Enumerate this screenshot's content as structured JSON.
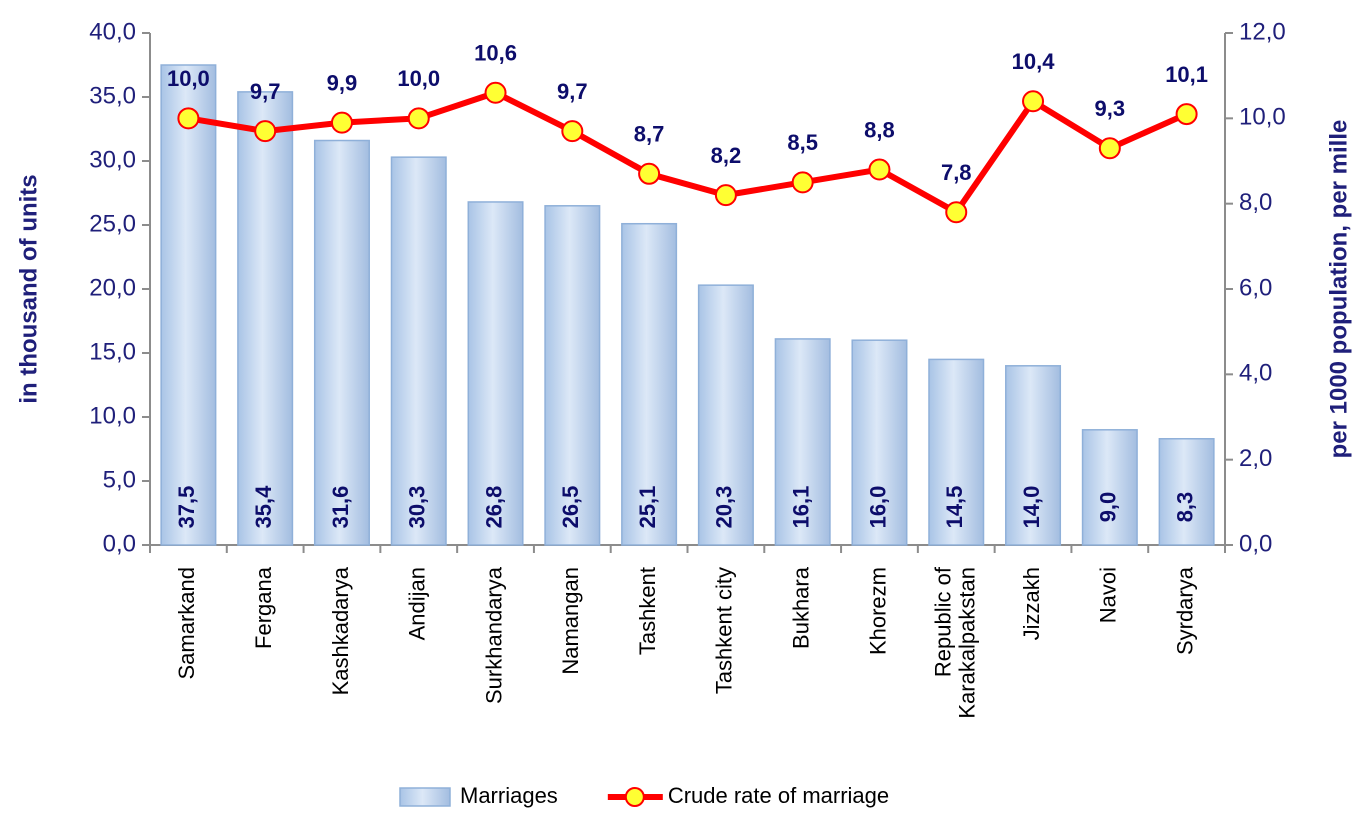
{
  "chart_data": {
    "type": "bar",
    "categories": [
      "Samarkand",
      "Fergana",
      "Kashkadarya",
      "Andijan",
      "Surkhandarya",
      "Namangan",
      "Tashkent",
      "Tashkent city",
      "Bukhara",
      "Khorezm",
      "Republic of Karakalpakstan",
      "Jizzakh",
      "Navoi",
      "Syrdarya"
    ],
    "series": [
      {
        "name": "Marriages",
        "type": "bar",
        "color": "#c5d9f1",
        "axis": "y",
        "values": [
          37.5,
          35.4,
          31.6,
          30.3,
          26.8,
          26.5,
          25.1,
          20.3,
          16.1,
          16.0,
          14.5,
          14.0,
          9.0,
          8.3
        ],
        "value_labels": [
          "37,5",
          "35,4",
          "31,6",
          "30,3",
          "26,8",
          "26,5",
          "25,1",
          "20,3",
          "16,1",
          "16,0",
          "14,5",
          "14,0",
          "9,0",
          "8,3"
        ]
      },
      {
        "name": "Crude rate of marriage",
        "type": "line",
        "color": "#ff0000",
        "axis": "y2",
        "values": [
          10.0,
          9.7,
          9.9,
          10.0,
          10.6,
          9.7,
          8.7,
          8.2,
          8.5,
          8.8,
          7.8,
          10.4,
          9.3,
          10.1
        ],
        "value_labels": [
          "10,0",
          "9,7",
          "9,9",
          "10,0",
          "10,6",
          "9,7",
          "8,7",
          "8,2",
          "8,5",
          "8,8",
          "7,8",
          "10,4",
          "9,3",
          "10,1"
        ]
      }
    ],
    "ylabel": "in thousand of units",
    "y2label": "per 1000 population, per mille",
    "ylim": [
      0,
      40
    ],
    "yticks": [
      {
        "value": 0,
        "label": "0,0"
      },
      {
        "value": 5,
        "label": "5,0"
      },
      {
        "value": 10,
        "label": "10,0"
      },
      {
        "value": 15,
        "label": "15,0"
      },
      {
        "value": 20,
        "label": "20,0"
      },
      {
        "value": 25,
        "label": "25,0"
      },
      {
        "value": 30,
        "label": "30,0"
      },
      {
        "value": 35,
        "label": "35,0"
      },
      {
        "value": 40,
        "label": "40,0"
      }
    ],
    "y2lim": [
      0,
      12
    ],
    "y2ticks": [
      {
        "value": 0,
        "label": "0,0"
      },
      {
        "value": 2,
        "label": "2,0"
      },
      {
        "value": 4,
        "label": "4,0"
      },
      {
        "value": 6,
        "label": "6,0"
      },
      {
        "value": 8,
        "label": "8,0"
      },
      {
        "value": 10,
        "label": "10,0"
      },
      {
        "value": 12,
        "label": "12,0"
      }
    ],
    "grid": false,
    "legend": "bottom"
  }
}
